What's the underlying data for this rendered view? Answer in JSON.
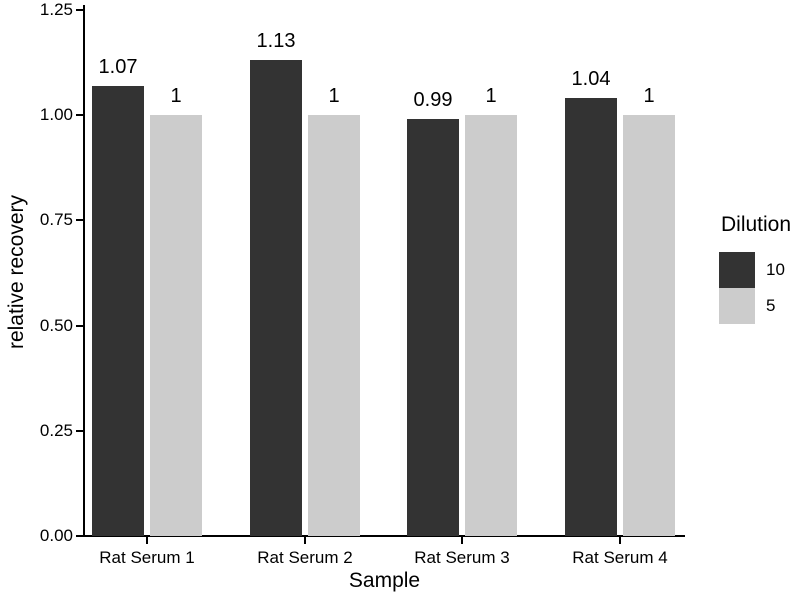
{
  "chart_data": {
    "type": "bar",
    "title": "",
    "xlabel": "Sample",
    "ylabel": "relative recovery",
    "categories": [
      "Rat Serum 1",
      "Rat Serum 2",
      "Rat Serum 3",
      "Rat Serum 4"
    ],
    "series": [
      {
        "name": "10",
        "color": "#333333",
        "values": [
          1.07,
          1.13,
          0.99,
          1.04
        ],
        "value_labels": [
          "1.07",
          "1.13",
          "0.99",
          "1.04"
        ]
      },
      {
        "name": "5",
        "color": "#cccccc",
        "values": [
          1,
          1,
          1,
          1
        ],
        "value_labels": [
          "1",
          "1",
          "1",
          "1"
        ]
      }
    ],
    "legend": {
      "title": "Dilution",
      "position": "right"
    },
    "y_axis": {
      "min": 0,
      "max": 1.25,
      "ticks": [
        {
          "label": "0.00",
          "value": 0
        },
        {
          "label": "0.25",
          "value": 0.25
        },
        {
          "label": "0.50",
          "value": 0.5
        },
        {
          "label": "0.75",
          "value": 0.75
        },
        {
          "label": "1.00",
          "value": 1
        },
        {
          "label": "1.25",
          "value": 1.25
        }
      ]
    },
    "grid": false,
    "background_color": "#ffffff",
    "axis_color": "#000000",
    "text_color": "#000000"
  }
}
